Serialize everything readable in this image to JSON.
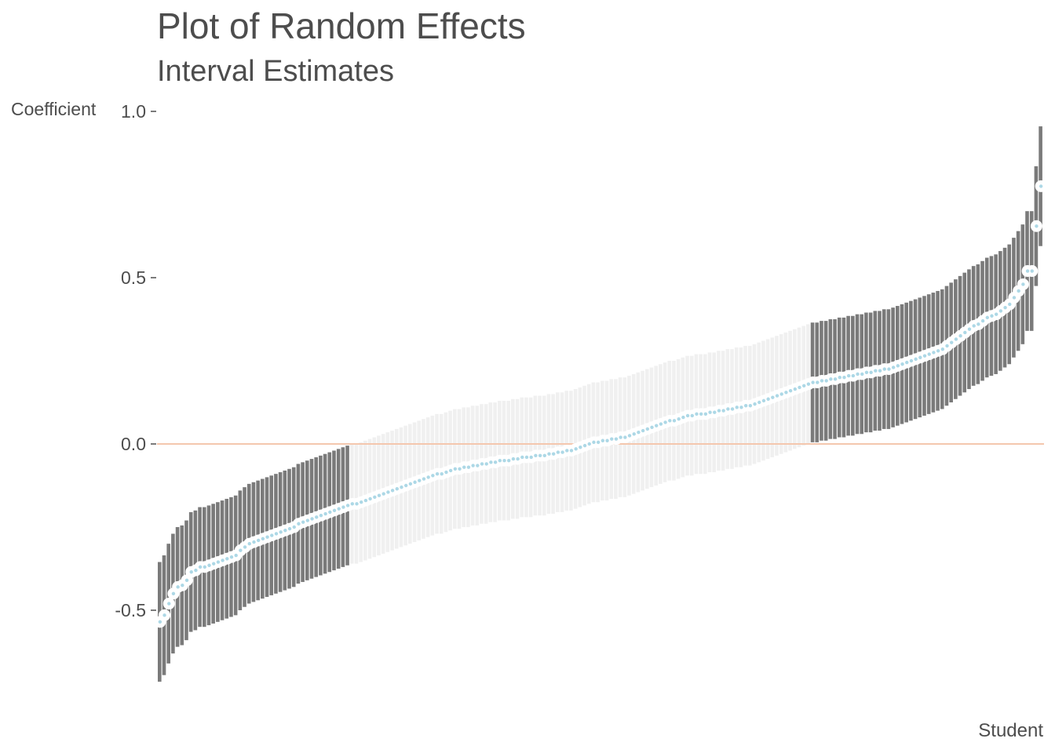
{
  "chart_data": {
    "type": "interval",
    "title": "Plot of Random Effects",
    "subtitle": "Interval Estimates",
    "xlabel": "Student",
    "ylabel": "Coefficient",
    "ylim": [
      -0.75,
      1.0
    ],
    "yticks": [
      1.0,
      0.5,
      0.0,
      -0.5
    ],
    "ytick_labels": [
      "1.0",
      "0.5",
      "0.0",
      "-0.5"
    ],
    "reference_line": 0.0,
    "grid": false,
    "n_groups": 198,
    "interval_half_width": 0.18,
    "point_estimates": [
      -0.535,
      -0.515,
      -0.48,
      -0.45,
      -0.43,
      -0.425,
      -0.41,
      -0.385,
      -0.38,
      -0.37,
      -0.37,
      -0.365,
      -0.36,
      -0.355,
      -0.35,
      -0.345,
      -0.34,
      -0.335,
      -0.32,
      -0.31,
      -0.3,
      -0.295,
      -0.29,
      -0.285,
      -0.28,
      -0.275,
      -0.27,
      -0.265,
      -0.26,
      -0.255,
      -0.25,
      -0.24,
      -0.235,
      -0.23,
      -0.225,
      -0.22,
      -0.215,
      -0.21,
      -0.205,
      -0.2,
      -0.195,
      -0.19,
      -0.185,
      -0.18,
      -0.18,
      -0.175,
      -0.17,
      -0.165,
      -0.16,
      -0.155,
      -0.15,
      -0.145,
      -0.14,
      -0.135,
      -0.13,
      -0.125,
      -0.12,
      -0.115,
      -0.11,
      -0.105,
      -0.1,
      -0.095,
      -0.09,
      -0.09,
      -0.085,
      -0.08,
      -0.075,
      -0.075,
      -0.07,
      -0.07,
      -0.065,
      -0.065,
      -0.06,
      -0.06,
      -0.055,
      -0.055,
      -0.05,
      -0.05,
      -0.05,
      -0.045,
      -0.045,
      -0.04,
      -0.04,
      -0.04,
      -0.035,
      -0.035,
      -0.035,
      -0.03,
      -0.03,
      -0.025,
      -0.025,
      -0.02,
      -0.02,
      -0.015,
      -0.01,
      -0.005,
      0.0,
      0.005,
      0.005,
      0.01,
      0.01,
      0.015,
      0.015,
      0.02,
      0.02,
      0.025,
      0.03,
      0.035,
      0.04,
      0.045,
      0.05,
      0.055,
      0.06,
      0.065,
      0.07,
      0.07,
      0.075,
      0.08,
      0.085,
      0.085,
      0.09,
      0.09,
      0.09,
      0.095,
      0.095,
      0.1,
      0.1,
      0.105,
      0.105,
      0.11,
      0.11,
      0.115,
      0.115,
      0.12,
      0.125,
      0.13,
      0.135,
      0.14,
      0.145,
      0.15,
      0.155,
      0.16,
      0.165,
      0.17,
      0.175,
      0.18,
      0.185,
      0.185,
      0.19,
      0.19,
      0.195,
      0.195,
      0.2,
      0.2,
      0.205,
      0.205,
      0.21,
      0.21,
      0.215,
      0.215,
      0.22,
      0.22,
      0.225,
      0.225,
      0.23,
      0.235,
      0.24,
      0.245,
      0.25,
      0.255,
      0.26,
      0.265,
      0.27,
      0.275,
      0.28,
      0.285,
      0.295,
      0.305,
      0.315,
      0.325,
      0.335,
      0.345,
      0.355,
      0.36,
      0.37,
      0.38,
      0.385,
      0.39,
      0.4,
      0.41,
      0.42,
      0.44,
      0.46,
      0.48,
      0.52,
      0.52,
      0.655,
      0.775
    ],
    "colors": {
      "significant_interval": "#7a7a7a",
      "nonsignificant_interval": "#f0f0f0",
      "point": "#add8e6",
      "point_outline": "#ffffff",
      "reference_line": "#f4c7ae"
    }
  }
}
